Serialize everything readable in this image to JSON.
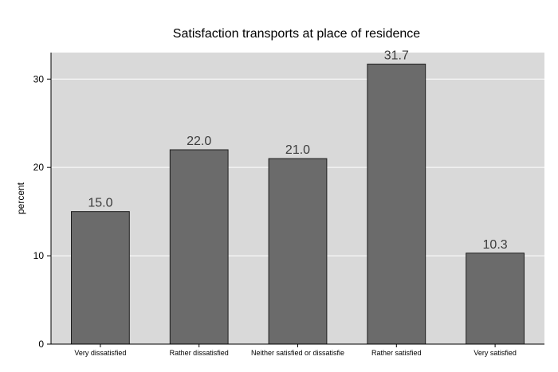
{
  "chart_data": {
    "type": "bar",
    "title": "Satisfaction transports at place of residence",
    "xlabel": "",
    "ylabel": "percent",
    "categories": [
      "Very dissatisfied",
      "Rather dissatisfied",
      "Neither satisfied or dissatisfie",
      "Rather satisfied",
      "Very satisfied"
    ],
    "values": [
      15.0,
      22.0,
      21.0,
      31.7,
      10.3
    ],
    "value_labels": [
      "15.0",
      "22.0",
      "21.0",
      "31.7",
      "10.3"
    ],
    "ylim": [
      0,
      33
    ],
    "yticks": [
      0,
      10,
      20,
      30
    ],
    "grid": true,
    "legend": "none",
    "colors": {
      "plot_background": "#d9d9d9",
      "bar_fill": "#6b6b6b",
      "bar_stroke": "#1e1e1e",
      "grid": "#ffffff"
    }
  }
}
